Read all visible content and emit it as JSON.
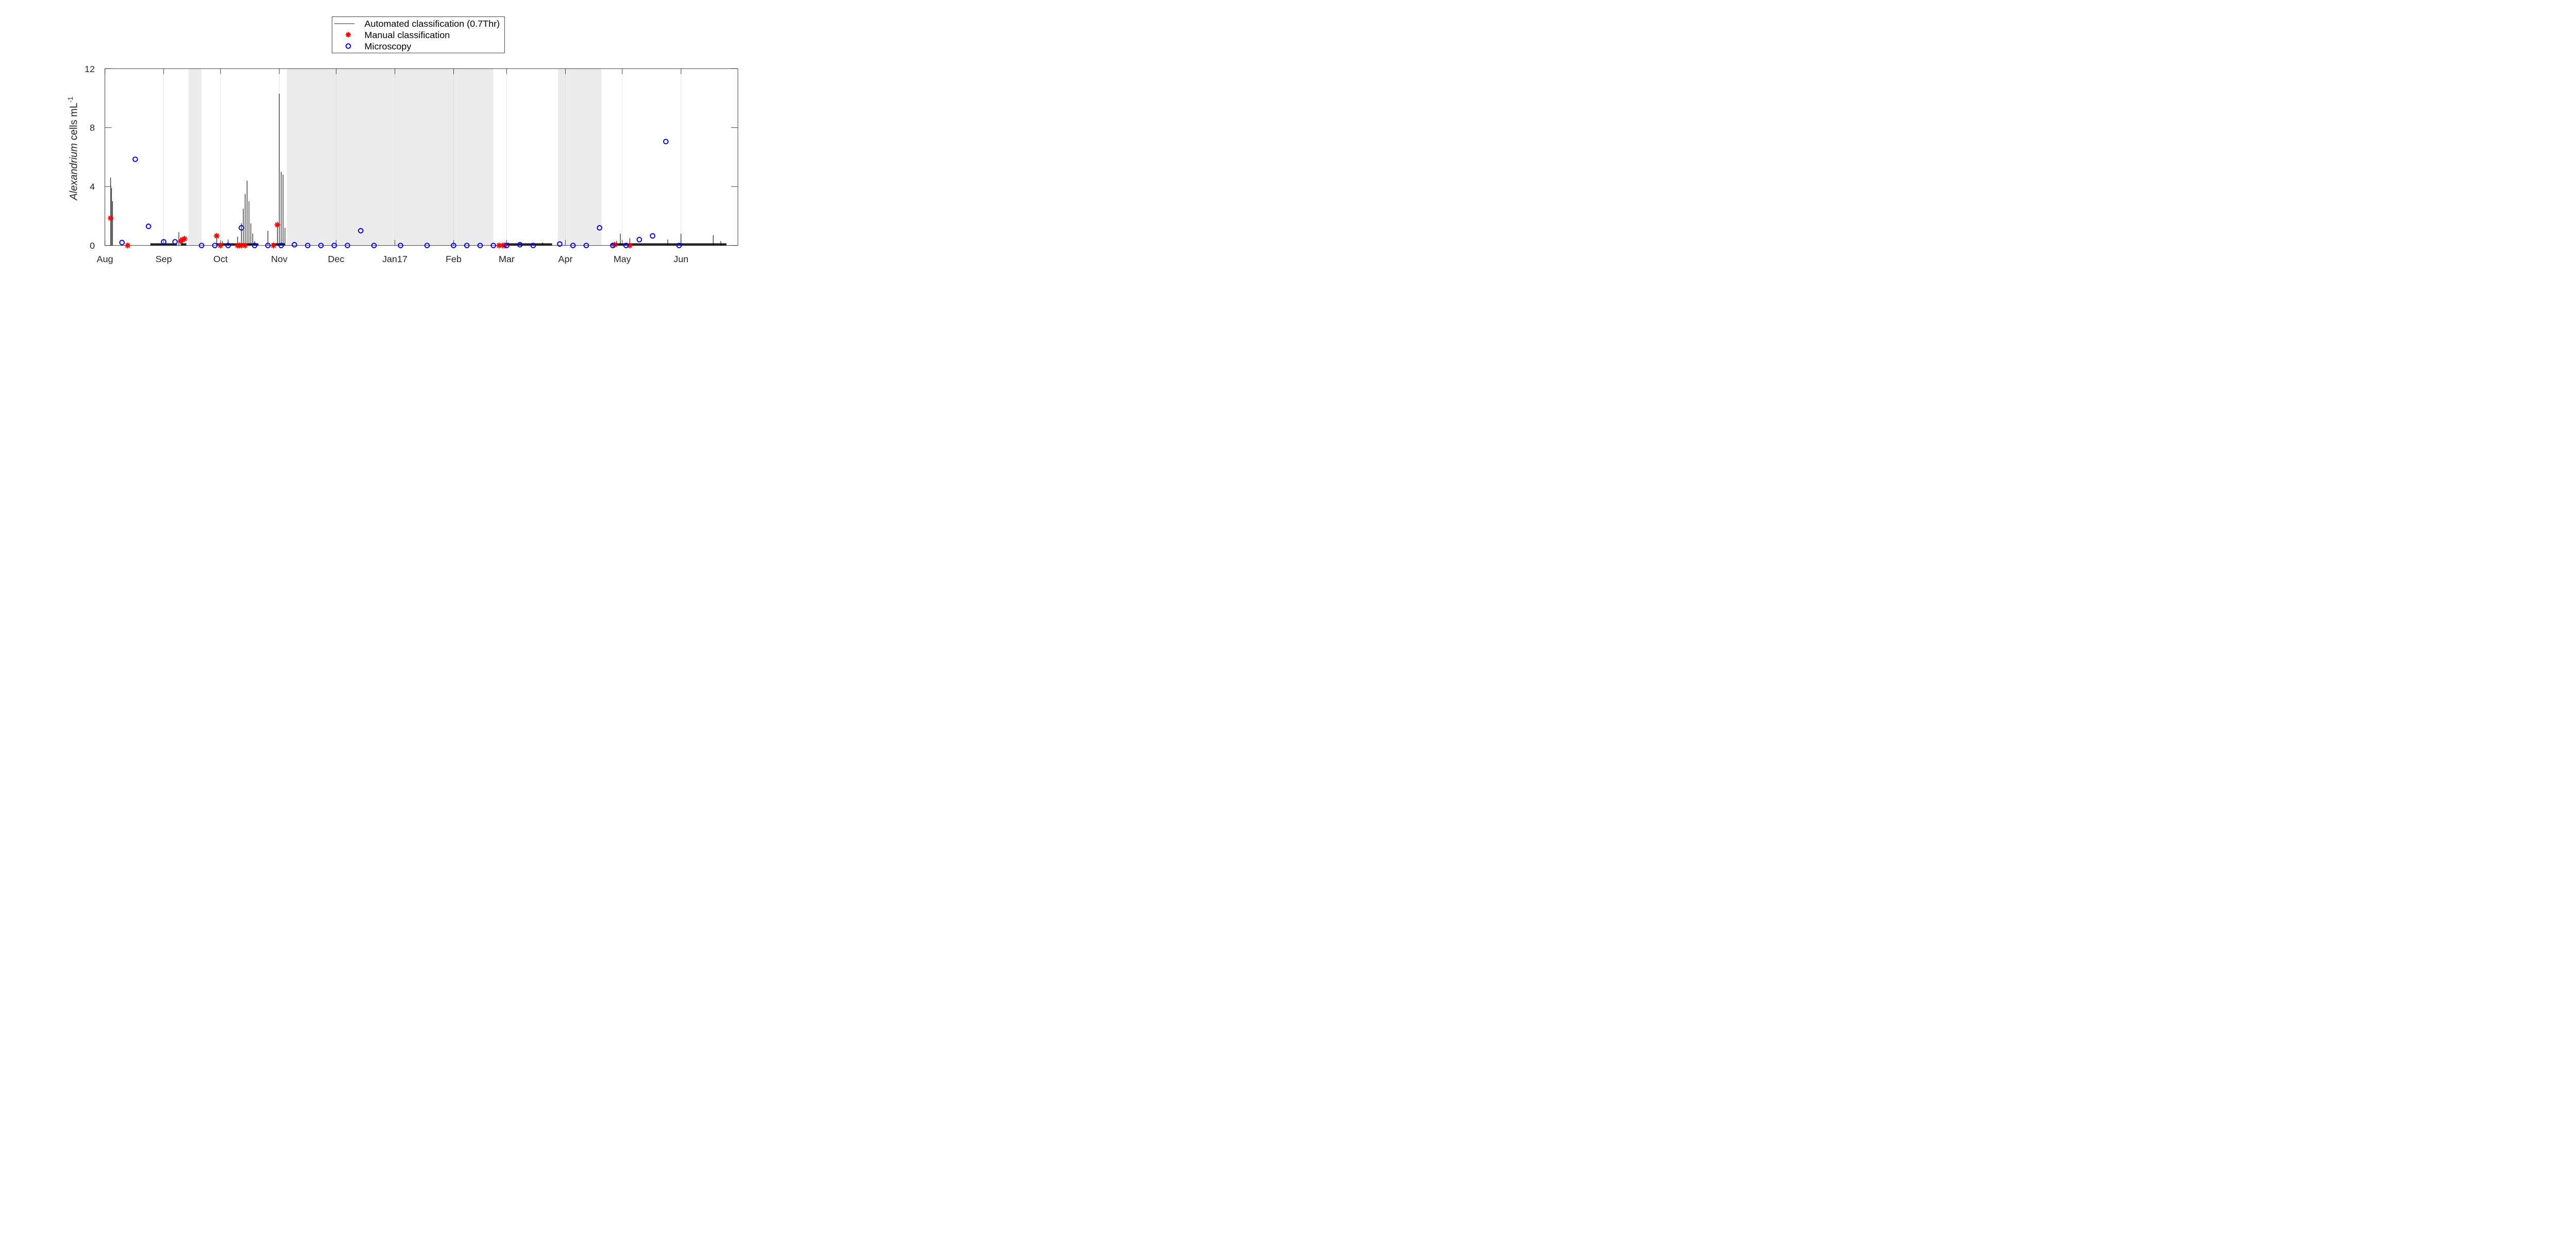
{
  "chart_data": {
    "type": "line",
    "xlabel": "",
    "ylabel_italic": "Alexandrium",
    "ylabel_rest": " cells mL",
    "ylabel_sup": "-1",
    "ylim": [
      0,
      12
    ],
    "yticks": [
      0,
      4,
      8,
      12
    ],
    "ytick_labels": [
      "0",
      "4",
      "8",
      "12"
    ],
    "xlim": [
      "2016-08-01",
      "2017-07-01"
    ],
    "xticks": [
      "2016-08-01",
      "2016-09-01",
      "2016-10-01",
      "2016-11-01",
      "2016-12-01",
      "2017-01-01",
      "2017-02-01",
      "2017-03-01",
      "2017-04-01",
      "2017-05-01",
      "2017-06-01"
    ],
    "xtick_labels": [
      "Aug",
      "Sep",
      "Oct",
      "Nov",
      "Dec",
      "Jan17",
      "Feb",
      "Mar",
      "Apr",
      "May",
      "Jun"
    ],
    "grid": "vertical",
    "legend_placement": "top-center",
    "shaded_periods": [
      [
        "2016-09-14",
        "2016-09-21"
      ],
      [
        "2016-11-05",
        "2017-02-22"
      ],
      [
        "2017-03-28",
        "2017-04-20"
      ]
    ],
    "series": [
      {
        "name": "Automated classification (0.7Thr)",
        "color": "#000000",
        "marker": "line",
        "values": [
          [
            "2016-08-04",
            4.6
          ],
          [
            "2016-08-04.5",
            3.9
          ],
          [
            "2016-08-05",
            3.0
          ],
          [
            "2016-09-09",
            0.9
          ],
          [
            "2016-09-11",
            0.4
          ],
          [
            "2016-09-29",
            0.5
          ],
          [
            "2016-10-02",
            0.3
          ],
          [
            "2016-10-05",
            0.4
          ],
          [
            "2016-10-10",
            0.6
          ],
          [
            "2016-10-12",
            1.5
          ],
          [
            "2016-10-13",
            2.5
          ],
          [
            "2016-10-14",
            3.5
          ],
          [
            "2016-10-15",
            4.4
          ],
          [
            "2016-10-16",
            3.0
          ],
          [
            "2016-10-17",
            1.5
          ],
          [
            "2016-10-18",
            0.8
          ],
          [
            "2016-10-19",
            0.3
          ],
          [
            "2016-10-26",
            1.0
          ],
          [
            "2016-10-31",
            1.5
          ],
          [
            "2016-11-01",
            10.3
          ],
          [
            "2016-11-02",
            5.0
          ],
          [
            "2016-11-03",
            4.8
          ],
          [
            "2016-11-04",
            1.2
          ],
          [
            "2017-03-02",
            0.2
          ],
          [
            "2017-03-20",
            0.2
          ],
          [
            "2017-04-28",
            0.3
          ],
          [
            "2017-04-30",
            0.8
          ],
          [
            "2017-05-05",
            0.5
          ],
          [
            "2017-05-25",
            0.4
          ],
          [
            "2017-06-01",
            0.8
          ],
          [
            "2017-06-18",
            0.7
          ],
          [
            "2017-06-22",
            0.3
          ]
        ]
      },
      {
        "name": "Manual classification",
        "color": "#ff0000",
        "marker": "asterisk",
        "values": [
          [
            "2016-08-04",
            1.85
          ],
          [
            "2016-08-13",
            0.0
          ],
          [
            "2016-09-10",
            0.3
          ],
          [
            "2016-09-11",
            0.4
          ],
          [
            "2016-09-12",
            0.45
          ],
          [
            "2016-09-29",
            0.65
          ],
          [
            "2016-10-01",
            0.0
          ],
          [
            "2016-10-10",
            0.0
          ],
          [
            "2016-10-11",
            0.0
          ],
          [
            "2016-10-12",
            0.0
          ],
          [
            "2016-10-14",
            0.0
          ],
          [
            "2016-10-29",
            0.0
          ],
          [
            "2016-10-31",
            1.4
          ],
          [
            "2017-02-25",
            0.0
          ],
          [
            "2017-02-27",
            0.0
          ],
          [
            "2017-02-28",
            0.0
          ],
          [
            "2017-04-27",
            0.05
          ],
          [
            "2017-05-05",
            0.0
          ]
        ]
      },
      {
        "name": "Microscopy",
        "color": "#0000ee",
        "marker": "circle",
        "values": [
          [
            "2016-08-10",
            0.2
          ],
          [
            "2016-08-17",
            5.85
          ],
          [
            "2016-08-24",
            1.3
          ],
          [
            "2016-09-01",
            0.25
          ],
          [
            "2016-09-07",
            0.25
          ],
          [
            "2016-09-21",
            0.0
          ],
          [
            "2016-09-28",
            0.0
          ],
          [
            "2016-10-05",
            0.0
          ],
          [
            "2016-10-12",
            1.2
          ],
          [
            "2016-10-19",
            0.0
          ],
          [
            "2016-10-26",
            0.0
          ],
          [
            "2016-11-02",
            0.0
          ],
          [
            "2016-11-09",
            0.05
          ],
          [
            "2016-11-16",
            0.0
          ],
          [
            "2016-11-23",
            0.0
          ],
          [
            "2016-11-30",
            0.0
          ],
          [
            "2016-12-07",
            0.0
          ],
          [
            "2016-12-14",
            1.0
          ],
          [
            "2016-12-21",
            0.0
          ],
          [
            "2017-01-04",
            0.0
          ],
          [
            "2017-01-18",
            0.0
          ],
          [
            "2017-02-01",
            0.0
          ],
          [
            "2017-02-08",
            0.0
          ],
          [
            "2017-02-15",
            0.0
          ],
          [
            "2017-02-22",
            0.0
          ],
          [
            "2017-03-01",
            0.0
          ],
          [
            "2017-03-08",
            0.05
          ],
          [
            "2017-03-15",
            0.0
          ],
          [
            "2017-03-29",
            0.1
          ],
          [
            "2017-04-05",
            0.0
          ],
          [
            "2017-04-12",
            0.0
          ],
          [
            "2017-04-19",
            1.2
          ],
          [
            "2017-04-26",
            0.0
          ],
          [
            "2017-05-03",
            0.0
          ],
          [
            "2017-05-10",
            0.4
          ],
          [
            "2017-05-17",
            0.65
          ],
          [
            "2017-05-24",
            7.05
          ],
          [
            "2017-05-31",
            0.0
          ]
        ]
      }
    ]
  }
}
